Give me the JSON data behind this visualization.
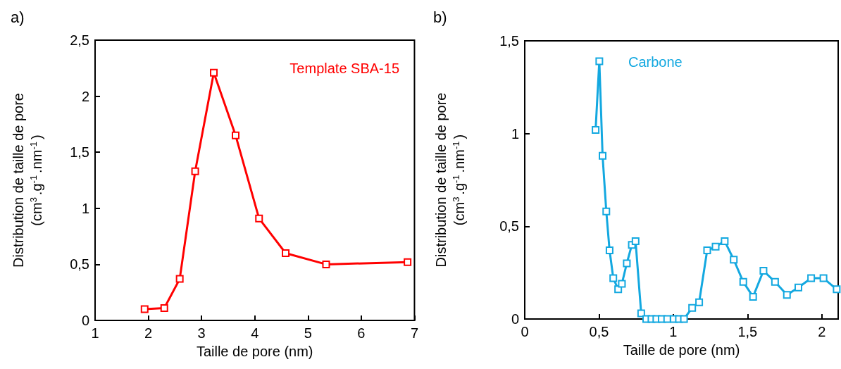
{
  "chart_data": [
    {
      "type": "line",
      "title": "a)",
      "xlabel": "Taille de pore (nm)",
      "ylabel": "Distribution de taille de pore\n(cm$^{3}$.g$^{-1}$.nm$^{-1}$)",
      "series": [
        {
          "name": "Template SBA-15",
          "color": "#ff0000",
          "x": [
            1.93,
            2.3,
            2.59,
            2.88,
            3.23,
            3.64,
            4.08,
            4.58,
            5.34,
            6.87
          ],
          "values": [
            0.1,
            0.11,
            0.37,
            1.33,
            2.21,
            1.65,
            0.91,
            0.6,
            0.5,
            0.52
          ]
        }
      ],
      "xlim": [
        1,
        7
      ],
      "xticks": [
        1,
        2,
        3,
        4,
        5,
        6,
        7
      ],
      "ylim": [
        0,
        2.5
      ],
      "yticks": [
        0,
        {
          "value": 0.5,
          "label": "0,5"
        },
        1,
        {
          "value": 1.5,
          "label": "1,5"
        },
        2,
        {
          "value": 2.5,
          "label": "2,5"
        }
      ],
      "marker": "square",
      "line_style": "solid",
      "grid": false,
      "legend": false
    },
    {
      "type": "line",
      "title": "b)",
      "xlabel": "Taille de pore (nm)",
      "ylabel": "Distribution de taille de pore\n(cm$^{3}$.g$^{-1}$.nm$^{-1}$)",
      "series": [
        {
          "name": "Carbone",
          "color": "#13a8e0",
          "x": [
            0.477,
            0.502,
            0.524,
            0.549,
            0.571,
            0.596,
            0.629,
            0.654,
            0.687,
            0.721,
            0.746,
            0.784,
            0.818,
            0.853,
            0.886,
            0.922,
            0.959,
            1.003,
            1.038,
            1.072,
            1.127,
            1.174,
            1.228,
            1.285,
            1.346,
            1.407,
            1.471,
            1.537,
            1.607,
            1.685,
            1.765,
            1.842,
            1.928,
            2.011,
            2.1
          ],
          "values": [
            1.02,
            1.39,
            0.88,
            0.58,
            0.37,
            0.22,
            0.16,
            0.19,
            0.3,
            0.4,
            0.42,
            0.03,
            0,
            0,
            0,
            0,
            0,
            0,
            0,
            0,
            0.06,
            0.09,
            0.37,
            0.39,
            0.42,
            0.32,
            0.2,
            0.12,
            0.26,
            0.2,
            0.13,
            0.17,
            0.22,
            0.22,
            0.16
          ]
        }
      ],
      "xlim": [
        0,
        2.11
      ],
      "xticks": [
        0,
        {
          "value": 0.5,
          "label": "0,5"
        },
        1,
        {
          "value": 1.5,
          "label": "1,5"
        },
        2
      ],
      "ylim": [
        0,
        1.5
      ],
      "yticks": [
        0,
        {
          "value": 0.5,
          "label": "0,5"
        },
        1,
        {
          "value": 1.5,
          "label": "1,5"
        }
      ],
      "marker": "square",
      "line_style": "solid",
      "grid": false,
      "legend": false
    }
  ]
}
